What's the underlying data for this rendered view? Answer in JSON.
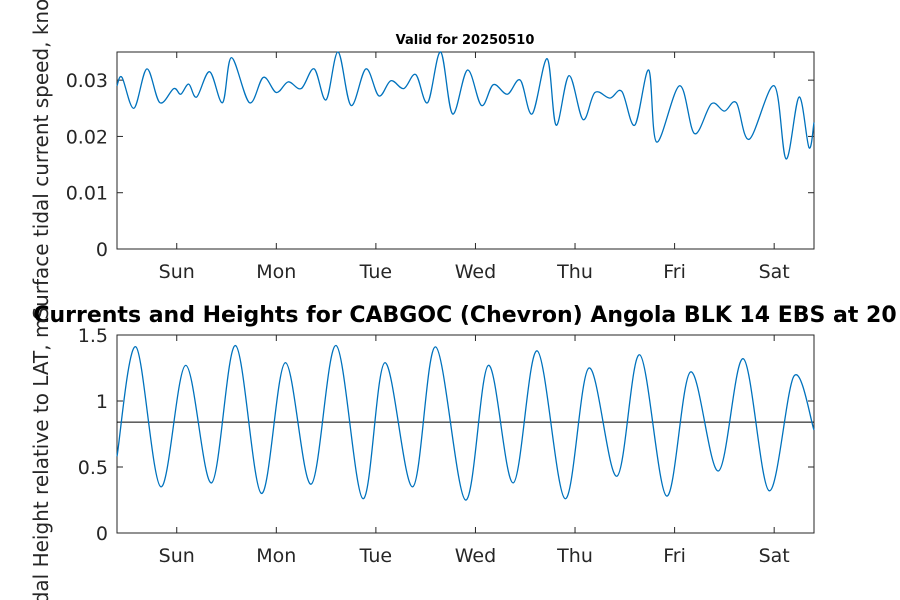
{
  "chart_data": [
    {
      "type": "line",
      "title": "Valid for 20250510",
      "ylabel": "Surface tidal current speed, knots",
      "ylim": [
        0,
        0.035
      ],
      "yticks": [
        0,
        0.01,
        0.02,
        0.03
      ],
      "ytick_labels": [
        "0",
        "0.01",
        "0.02",
        "0.03"
      ],
      "xlim": [
        0,
        7
      ],
      "xticks": [
        0.6,
        1.6,
        2.6,
        3.6,
        4.6,
        5.6,
        6.6
      ],
      "xtick_labels": [
        "Sun",
        "Mon",
        "Tue",
        "Wed",
        "Thu",
        "Fri",
        "Sat"
      ],
      "grid": false,
      "series": [
        {
          "color": "#0072BD",
          "x": [
            0,
            0.05,
            0.17,
            0.3,
            0.43,
            0.57,
            0.64,
            0.72,
            0.8,
            0.93,
            1.06,
            1.15,
            1.33,
            1.47,
            1.6,
            1.72,
            1.85,
            1.98,
            2.1,
            2.22,
            2.35,
            2.5,
            2.63,
            2.75,
            2.88,
            3.0,
            3.12,
            3.25,
            3.37,
            3.52,
            3.66,
            3.78,
            3.92,
            4.05,
            4.17,
            4.32,
            4.41,
            4.54,
            4.68,
            4.8,
            4.95,
            5.07,
            5.2,
            5.34,
            5.42,
            5.65,
            5.8,
            5.97,
            6.1,
            6.22,
            6.35,
            6.6,
            6.72,
            6.85,
            6.95,
            7.0
          ],
          "y": [
            0.029,
            0.0305,
            0.025,
            0.032,
            0.026,
            0.0285,
            0.0275,
            0.0293,
            0.027,
            0.0315,
            0.026,
            0.034,
            0.026,
            0.0305,
            0.0278,
            0.0297,
            0.0285,
            0.032,
            0.0265,
            0.035,
            0.0255,
            0.032,
            0.0272,
            0.0299,
            0.0285,
            0.031,
            0.026,
            0.035,
            0.024,
            0.0318,
            0.0255,
            0.0292,
            0.0275,
            0.03,
            0.024,
            0.0338,
            0.022,
            0.0308,
            0.023,
            0.0278,
            0.0268,
            0.028,
            0.022,
            0.0318,
            0.019,
            0.029,
            0.0205,
            0.0258,
            0.0245,
            0.026,
            0.0195,
            0.029,
            0.016,
            0.027,
            0.018,
            0.0225
          ]
        }
      ]
    },
    {
      "type": "line",
      "title": "Currents and Heights for CABGOC (Chevron)  Angola BLK 14  EBS at 20",
      "ylabel": "Tidal Height relative to LAT, m",
      "ylim": [
        0,
        1.5
      ],
      "yticks": [
        0,
        0.5,
        1,
        1.5
      ],
      "ytick_labels": [
        "0",
        "0.5",
        "1",
        "1.5"
      ],
      "xlim": [
        0,
        7
      ],
      "xticks": [
        0.6,
        1.6,
        2.6,
        3.6,
        4.6,
        5.6,
        6.6
      ],
      "xtick_labels": [
        "Sun",
        "Mon",
        "Tue",
        "Wed",
        "Thu",
        "Fri",
        "Sat"
      ],
      "grid": false,
      "reference_line": 0.84,
      "series": [
        {
          "color": "#0072BD",
          "x": [
            0,
            0.19,
            0.44,
            0.69,
            0.95,
            1.19,
            1.45,
            1.69,
            1.95,
            2.2,
            2.47,
            2.69,
            2.97,
            3.2,
            3.5,
            3.73,
            3.98,
            4.22,
            4.5,
            4.74,
            5.02,
            5.25,
            5.52,
            5.76,
            6.04,
            6.29,
            6.55,
            6.8,
            7.0
          ],
          "y": [
            0.58,
            1.41,
            0.35,
            1.27,
            0.38,
            1.42,
            0.3,
            1.29,
            0.37,
            1.42,
            0.26,
            1.29,
            0.35,
            1.41,
            0.25,
            1.27,
            0.38,
            1.38,
            0.26,
            1.25,
            0.43,
            1.35,
            0.28,
            1.22,
            0.47,
            1.32,
            0.32,
            1.19,
            0.78
          ]
        }
      ]
    }
  ]
}
